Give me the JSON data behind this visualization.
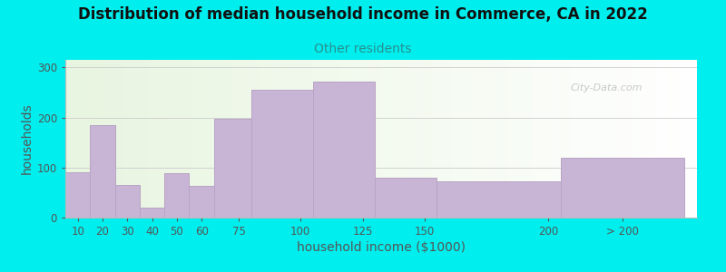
{
  "title": "Distribution of median household income in Commerce, CA in 2022",
  "subtitle": "Other residents",
  "xlabel": "household income ($1000)",
  "ylabel": "households",
  "background_color": "#00EEEE",
  "bar_color": "#c8b4d4",
  "bar_edge_color": "#b8a4c4",
  "values": [
    90,
    185,
    65,
    20,
    88,
    63,
    198,
    255,
    272,
    80,
    72,
    120
  ],
  "bar_widths": [
    10,
    10,
    10,
    10,
    10,
    10,
    15,
    25,
    25,
    25,
    50,
    50
  ],
  "bar_lefts": [
    5,
    15,
    25,
    35,
    45,
    55,
    65,
    80,
    105,
    130,
    155,
    205
  ],
  "xlim": [
    5,
    260
  ],
  "ylim": [
    0,
    315
  ],
  "yticks": [
    0,
    100,
    200,
    300
  ],
  "xtick_positions": [
    10,
    20,
    30,
    40,
    50,
    60,
    75,
    100,
    125,
    150,
    200,
    230
  ],
  "xtick_labels": [
    "10",
    "20",
    "30",
    "40",
    "50",
    "60",
    "75",
    "100",
    "125",
    "150",
    "200",
    "> 200"
  ],
  "watermark": "City-Data.com",
  "title_fontsize": 12,
  "subtitle_fontsize": 10,
  "axis_label_fontsize": 10,
  "tick_fontsize": 8.5
}
